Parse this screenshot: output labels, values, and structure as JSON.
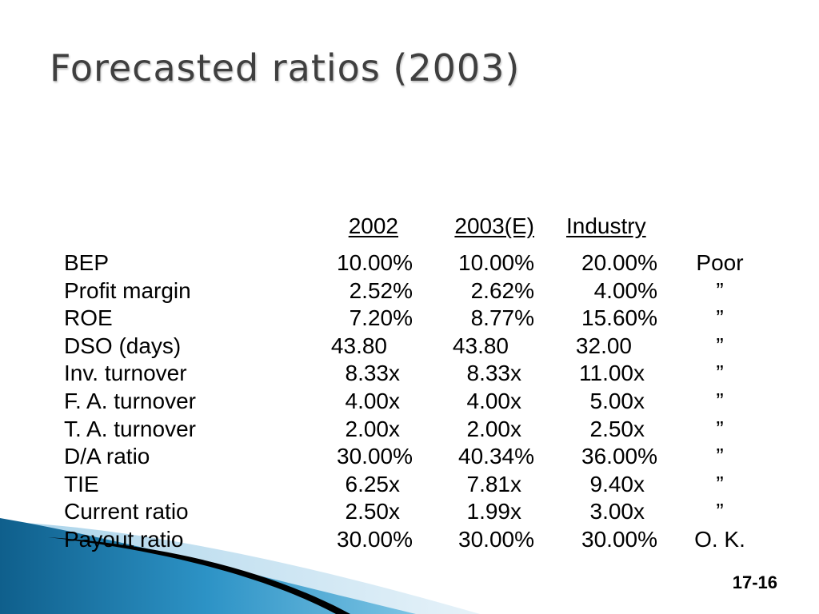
{
  "slide": {
    "title": "Forecasted ratios (2003)",
    "page_number": "17-16"
  },
  "table": {
    "headers": {
      "y2002": "2002",
      "y2003": "2003(E)",
      "industry": "Industry"
    },
    "rows": [
      {
        "label": "BEP",
        "y2002": "10.00%",
        "y2003": "10.00%",
        "industry": "20.00%",
        "eval": "Poor"
      },
      {
        "label": "Profit margin",
        "y2002": "2.52%",
        "y2003": "2.62%",
        "industry": "4.00%",
        "eval": "”"
      },
      {
        "label": "ROE",
        "y2002": "7.20%",
        "y2003": "8.77%",
        "industry": "15.60%",
        "eval": "”"
      },
      {
        "label": "DSO (days)",
        "y2002": "43.80",
        "y2003": "43.80",
        "industry": "32.00",
        "eval": "”"
      },
      {
        "label": "Inv. turnover",
        "y2002": "8.33x",
        "y2003": "8.33x",
        "industry": "11.00x",
        "eval": "”"
      },
      {
        "label": "F. A. turnover",
        "y2002": "4.00x",
        "y2003": "4.00x",
        "industry": "5.00x",
        "eval": "”"
      },
      {
        "label": "T. A. turnover",
        "y2002": "2.00x",
        "y2003": "2.00x",
        "industry": "2.50x",
        "eval": "”"
      },
      {
        "label": "D/A ratio",
        "y2002": "30.00%",
        "y2003": "40.34%",
        "industry": "36.00%",
        "eval": "”"
      },
      {
        "label": "TIE",
        "y2002": "6.25x",
        "y2003": "7.81x",
        "industry": "9.40x",
        "eval": "”"
      },
      {
        "label": "Current ratio",
        "y2002": "2.50x",
        "y2003": "1.99x",
        "industry": "3.00x",
        "eval": "”"
      },
      {
        "label": "Payout ratio",
        "y2002": "30.00%",
        "y2003": "30.00%",
        "industry": "30.00%",
        "eval": "O. K."
      }
    ]
  },
  "colors": {
    "title": "#3f3f3f",
    "swoosh_light": "#cfe6f2",
    "swoosh_blue": "#1e7fb0",
    "swoosh_dark": "#000000"
  }
}
